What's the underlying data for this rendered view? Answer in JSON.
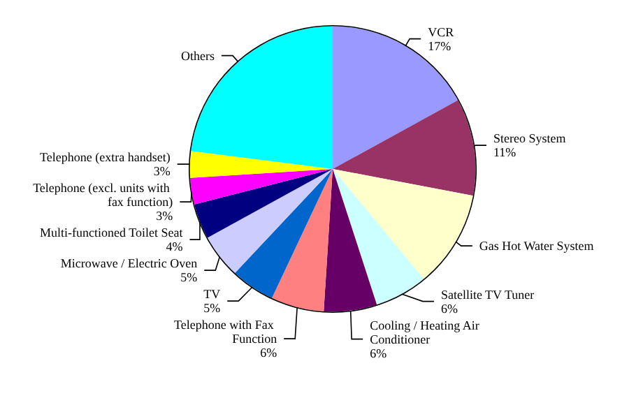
{
  "chart_data": {
    "type": "pie",
    "categories": [
      "VCR",
      "Stereo System",
      "Gas Hot Water System",
      "Satellite TV Tuner",
      "Cooling / Heating Air Conditioner",
      "Telephone with Fax Function",
      "TV",
      "Microwave / Electric Oven",
      "Multi-functioned Toilet Seat",
      "Telephone (excl. units with fax function)",
      "Telephone (extra handset)",
      "Others"
    ],
    "values": [
      17,
      11,
      11,
      6,
      6,
      6,
      5,
      5,
      4,
      3,
      3,
      23
    ],
    "value_labels": [
      "17%",
      "11%",
      null,
      "6%",
      "6%",
      "6%",
      "5%",
      "5%",
      "4%",
      "3%",
      "3%",
      null
    ],
    "colors": [
      "#9999ff",
      "#993366",
      "#ffffcc",
      "#ccffff",
      "#660066",
      "#ff8080",
      "#0066cc",
      "#ccccff",
      "#000080",
      "#ff00ff",
      "#ffff00",
      "#00ffff"
    ]
  }
}
